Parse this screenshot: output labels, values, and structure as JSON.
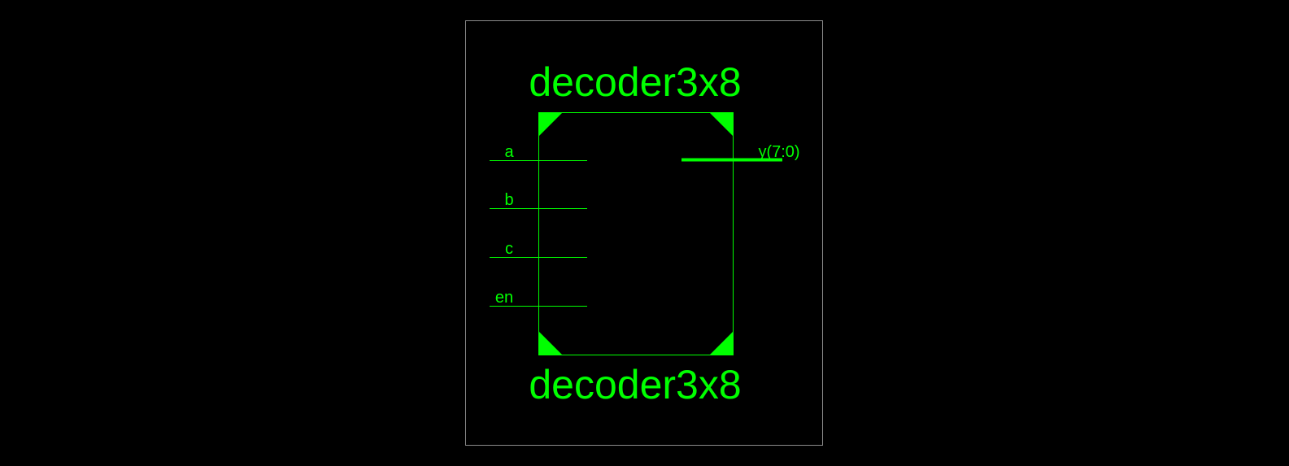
{
  "symbol": {
    "name_top": "decoder3x8",
    "name_bottom": "decoder3x8",
    "inputs": [
      {
        "label": "a"
      },
      {
        "label": "b"
      },
      {
        "label": "c"
      },
      {
        "label": "en"
      }
    ],
    "outputs": [
      {
        "label": "y(7:0)"
      }
    ]
  },
  "colors": {
    "background": "#000000",
    "symbol": "#00ff00",
    "frame": "#8a8a8a"
  }
}
